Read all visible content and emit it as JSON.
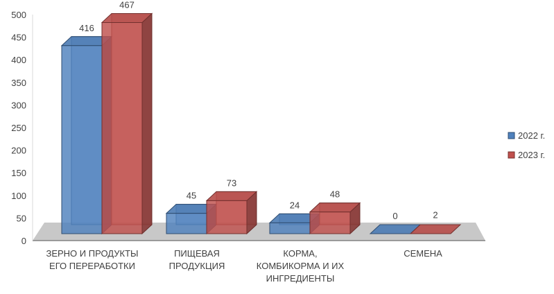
{
  "chart_data": {
    "type": "bar",
    "title": "",
    "xlabel": "",
    "ylabel": "",
    "ylim": [
      0,
      500
    ],
    "yticks": [
      0,
      50,
      100,
      150,
      200,
      250,
      300,
      350,
      400,
      450,
      500
    ],
    "categories": [
      [
        "ЗЕРНО И ПРОДУКТЫ",
        "ЕГО ПЕРЕРАБОТКИ"
      ],
      [
        "ПИЩЕВАЯ",
        "ПРОДУКЦИЯ"
      ],
      [
        "КОРМА,",
        "КОМБИКОРМА И ИХ",
        "ИНГРЕДИЕНТЫ"
      ],
      [
        "СЕМЕНА"
      ]
    ],
    "series": [
      {
        "name": "2022 г.",
        "values": [
          416,
          45,
          24,
          0
        ],
        "color": "#4f81bd"
      },
      {
        "name": "2023 г.",
        "values": [
          467,
          73,
          48,
          2
        ],
        "color": "#c0504d"
      }
    ],
    "legend_position": "right",
    "grid": false,
    "style": "3d-clustered-column"
  }
}
